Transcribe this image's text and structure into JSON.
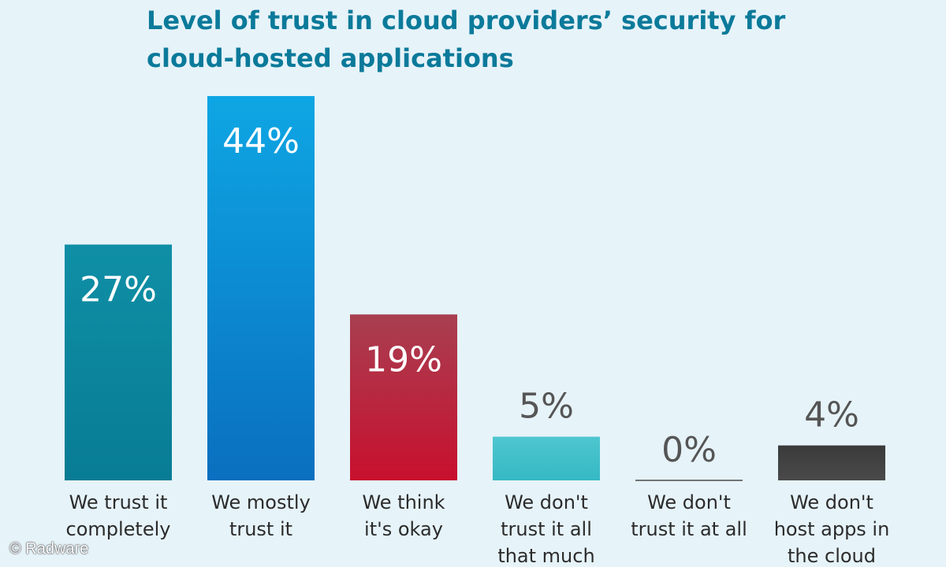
{
  "chart_data": {
    "type": "bar",
    "title_lines": [
      "Level of trust in cloud providers’ security for",
      "cloud-hosted applications"
    ],
    "categories": [
      [
        "We trust it",
        "completely"
      ],
      [
        "We mostly",
        "trust it"
      ],
      [
        "We think",
        "it's okay"
      ],
      [
        "We don't",
        "trust it all",
        "that much"
      ],
      [
        "We don't",
        "trust it at all"
      ],
      [
        "We don't",
        "host apps in",
        "the cloud"
      ]
    ],
    "values": [
      27,
      44,
      19,
      5,
      0,
      4
    ],
    "value_labels": [
      "27%",
      "44%",
      "19%",
      "5%",
      "0%",
      "4%"
    ],
    "unit": "%",
    "ylim": [
      0,
      44
    ],
    "grid": false,
    "legend": "none",
    "colors": [
      [
        "#0f8fa6",
        "#087c94"
      ],
      [
        "#0ea6e4",
        "#0a6fbf"
      ],
      [
        "#a83f51",
        "#c8102e"
      ],
      [
        "#4ec6cf",
        "#35b9c4"
      ],
      [
        "#4a4a4a",
        "#6a6a6a"
      ],
      [
        "#3a3a3a",
        "#4a4a4a"
      ]
    ]
  },
  "watermark": "© Radware",
  "text_colors": {
    "title": "#0b7a9a",
    "inside_label": "#ffffff",
    "outside_label": "#555555",
    "category": "#2b2b2b"
  }
}
